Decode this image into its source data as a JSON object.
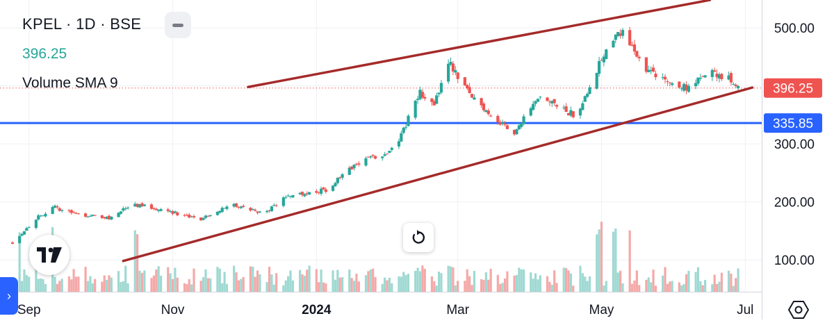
{
  "header": {
    "symbol_line": "KPEL · 1D · BSE",
    "last_price": "396.25",
    "indicator_label": "Volume SMA 9"
  },
  "colors": {
    "up": "#26a69a",
    "down": "#ef5350",
    "up_volume": "#9fd9d2",
    "down_volume": "#f4a9a8",
    "horizontal_line": "#2962ff",
    "channel_lines": "#a52a2a",
    "price_badge_bg": "#ef5350",
    "level_badge_bg": "#2962ff"
  },
  "icons": {
    "logo": "tradingview-logo",
    "reset": "reset-icon",
    "side_tab": "chevron-right-icon",
    "settings": "settings-hexagon-icon",
    "collapse": "collapse-icon"
  },
  "chart_data": {
    "type": "candlestick",
    "x_axis": {
      "labels": [
        "Sep",
        "Nov",
        "2024",
        "Mar",
        "May",
        "Jul"
      ],
      "label_dates": [
        "2023-09-01",
        "2023-11-01",
        "2024-01-01",
        "2024-03-01",
        "2024-05-01",
        "2024-07-01"
      ],
      "bold_labels": [
        "2024"
      ],
      "range": [
        "2023-08-25",
        "2024-07-08"
      ]
    },
    "y_axis": {
      "ticks": [
        "500.00",
        "300.00",
        "200.00",
        "100.00"
      ],
      "tick_values": [
        500,
        300,
        200,
        100
      ],
      "range": [
        45,
        548
      ]
    },
    "grid": true,
    "price_anchors": [
      [
        "2023-08-25",
        130
      ],
      [
        "2023-09-05",
        175
      ],
      [
        "2023-09-12",
        190
      ],
      [
        "2023-09-20",
        180
      ],
      [
        "2023-10-05",
        172
      ],
      [
        "2023-10-15",
        196
      ],
      [
        "2023-10-30",
        185
      ],
      [
        "2023-11-12",
        168
      ],
      [
        "2023-11-25",
        196
      ],
      [
        "2023-12-10",
        180
      ],
      [
        "2023-12-20",
        212
      ],
      [
        "2024-01-05",
        220
      ],
      [
        "2024-01-20",
        272
      ],
      [
        "2024-01-30",
        282
      ],
      [
        "2024-02-05",
        308
      ],
      [
        "2024-02-14",
        388
      ],
      [
        "2024-02-20",
        365
      ],
      [
        "2024-02-26",
        445
      ],
      [
        "2024-03-05",
        390
      ],
      [
        "2024-03-18",
        338
      ],
      [
        "2024-03-25",
        322
      ],
      [
        "2024-04-05",
        378
      ],
      [
        "2024-04-20",
        348
      ],
      [
        "2024-04-28",
        420
      ],
      [
        "2024-05-03",
        465
      ],
      [
        "2024-05-08",
        500
      ],
      [
        "2024-05-20",
        430
      ],
      [
        "2024-05-30",
        405
      ],
      [
        "2024-06-08",
        395
      ],
      [
        "2024-06-15",
        425
      ],
      [
        "2024-06-25",
        410
      ],
      [
        "2024-06-29",
        396.25
      ]
    ],
    "volume_spike_dates": [
      "2023-08-27",
      "2023-09-10",
      "2023-10-16",
      "2024-04-30",
      "2024-05-06",
      "2024-05-12"
    ],
    "horizontal_levels": [
      {
        "value": 335.85,
        "label": "335.85",
        "color": "#2962ff"
      }
    ],
    "last_price_line": {
      "value": 396.25,
      "label": "396.25"
    },
    "trend_lines": [
      {
        "from": [
          "2023-10-11",
          98
        ],
        "to": [
          "2024-07-04",
          397
        ]
      },
      {
        "from": [
          "2023-12-03",
          398
        ],
        "to": [
          "2024-06-16",
          548
        ]
      }
    ]
  }
}
